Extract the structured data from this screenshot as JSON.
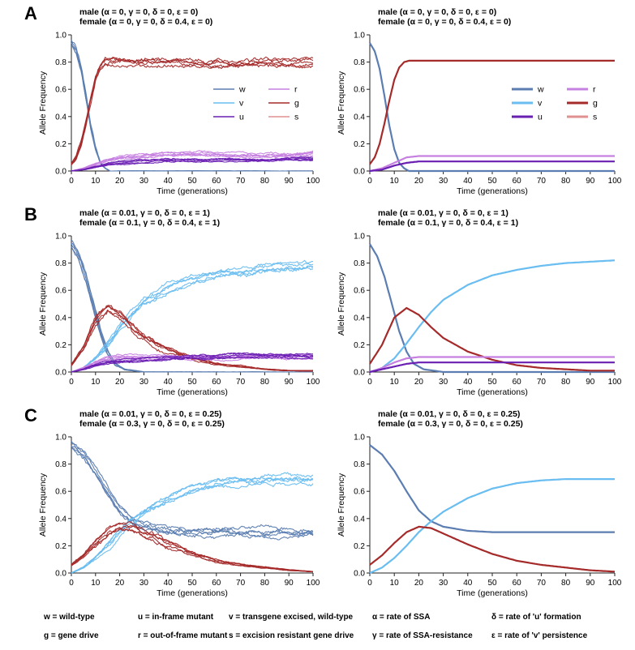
{
  "figure": {
    "colors": {
      "w": "#5b7db1",
      "v": "#69bdf0",
      "u": "#6a1fb3",
      "r": "#c680e0",
      "g": "#a52a2a",
      "s": "#e09090"
    },
    "legend_labels": [
      "w",
      "v",
      "u",
      "r",
      "g",
      "s"
    ],
    "footer": [
      [
        "w = wild-type",
        "u = in-frame mutant",
        "v = transgene excised, wild-type",
        "α = rate of SSA",
        "δ = rate of 'u' formation"
      ],
      [
        "g = gene drive",
        "r = out-of-frame mutant",
        "s = excision resistant gene drive",
        "γ = rate of SSA-resistance",
        "ε = rate of 'v' persistence"
      ]
    ]
  },
  "chart_data": [
    {
      "type": "line",
      "row_label": "A",
      "title": [
        "male (α = 0, γ = 0, δ = 0, ε = 0)",
        "female (α = 0, γ = 0, δ = 0.4, ε = 0)"
      ],
      "xlabel": "Time (generations)",
      "ylabel": "Allele Frequency",
      "xlim": [
        0,
        100
      ],
      "ylim": [
        0,
        1
      ],
      "xticks": [
        "0",
        "10",
        "20",
        "30",
        "40",
        "50",
        "60",
        "70",
        "80",
        "90",
        "100"
      ],
      "yticks": [
        "0.0",
        "0.2",
        "0.4",
        "0.6",
        "0.8",
        "1.0"
      ],
      "legend": "center-right",
      "stochastic": true,
      "series": [
        {
          "key": "w",
          "x": [
            0,
            2,
            4,
            6,
            8,
            10,
            12,
            14,
            16,
            20
          ],
          "y": [
            0.94,
            0.88,
            0.75,
            0.55,
            0.33,
            0.16,
            0.06,
            0.02,
            0.0,
            0.0
          ]
        },
        {
          "key": "g",
          "x": [
            0,
            2,
            4,
            6,
            8,
            10,
            12,
            14,
            16,
            20,
            30,
            40,
            50,
            60,
            70,
            80,
            90,
            100
          ],
          "y": [
            0.05,
            0.1,
            0.2,
            0.35,
            0.52,
            0.67,
            0.76,
            0.8,
            0.81,
            0.81,
            0.8,
            0.8,
            0.79,
            0.79,
            0.79,
            0.79,
            0.79,
            0.8
          ]
        },
        {
          "key": "r",
          "x": [
            0,
            5,
            10,
            15,
            20,
            30,
            40,
            50,
            60,
            70,
            80,
            90,
            100
          ],
          "y": [
            0,
            0.02,
            0.05,
            0.08,
            0.1,
            0.11,
            0.12,
            0.12,
            0.12,
            0.12,
            0.12,
            0.12,
            0.13
          ]
        },
        {
          "key": "u",
          "x": [
            0,
            5,
            10,
            15,
            20,
            30,
            40,
            50,
            60,
            70,
            80,
            90,
            100
          ],
          "y": [
            0,
            0.01,
            0.03,
            0.05,
            0.06,
            0.07,
            0.08,
            0.08,
            0.08,
            0.08,
            0.08,
            0.09,
            0.09
          ]
        }
      ]
    },
    {
      "type": "line",
      "row_label": "",
      "title": [
        "male (α = 0, γ = 0, δ = 0, ε = 0)",
        "female (α = 0, γ = 0, δ = 0.4, ε = 0)"
      ],
      "xlabel": "Time (generations)",
      "ylabel": "Allele Frequency",
      "xlim": [
        0,
        100
      ],
      "ylim": [
        0,
        1
      ],
      "xticks": [
        "0",
        "10",
        "20",
        "30",
        "40",
        "50",
        "60",
        "70",
        "80",
        "90",
        "100"
      ],
      "yticks": [
        "0.0",
        "0.2",
        "0.4",
        "0.6",
        "0.8",
        "1.0"
      ],
      "legend": "center-right",
      "stochastic": false,
      "series": [
        {
          "key": "w",
          "x": [
            0,
            2,
            4,
            6,
            8,
            10,
            12,
            14,
            16,
            20
          ],
          "y": [
            0.94,
            0.88,
            0.75,
            0.55,
            0.33,
            0.16,
            0.06,
            0.02,
            0.0,
            0.0
          ]
        },
        {
          "key": "g",
          "x": [
            0,
            2,
            4,
            6,
            8,
            10,
            12,
            14,
            16,
            18,
            20,
            30,
            40,
            50,
            60,
            70,
            80,
            90,
            100
          ],
          "y": [
            0.05,
            0.1,
            0.2,
            0.35,
            0.52,
            0.67,
            0.76,
            0.8,
            0.81,
            0.81,
            0.81,
            0.81,
            0.81,
            0.81,
            0.81,
            0.81,
            0.81,
            0.81,
            0.81
          ]
        },
        {
          "key": "r",
          "x": [
            0,
            5,
            10,
            15,
            20,
            30,
            40,
            50,
            60,
            70,
            80,
            90,
            100
          ],
          "y": [
            0,
            0.02,
            0.06,
            0.1,
            0.11,
            0.11,
            0.11,
            0.11,
            0.11,
            0.11,
            0.11,
            0.11,
            0.11
          ]
        },
        {
          "key": "u",
          "x": [
            0,
            5,
            10,
            15,
            20,
            30,
            40,
            50,
            60,
            70,
            80,
            90,
            100
          ],
          "y": [
            0,
            0.01,
            0.04,
            0.06,
            0.07,
            0.07,
            0.07,
            0.07,
            0.07,
            0.07,
            0.07,
            0.07,
            0.07
          ]
        }
      ]
    },
    {
      "type": "line",
      "row_label": "B",
      "title": [
        "male (α = 0.01, γ = 0, δ = 0, ε = 1)",
        "female (α = 0.1, γ = 0, δ = 0.4, ε = 1)"
      ],
      "xlabel": "Time (generations)",
      "ylabel": "Allele Frequency",
      "xlim": [
        0,
        100
      ],
      "ylim": [
        0,
        1
      ],
      "xticks": [
        "0",
        "10",
        "20",
        "30",
        "40",
        "50",
        "60",
        "70",
        "80",
        "90",
        "100"
      ],
      "yticks": [
        "0.0",
        "0.2",
        "0.4",
        "0.6",
        "0.8",
        "1.0"
      ],
      "legend": "none",
      "stochastic": true,
      "series": [
        {
          "key": "w",
          "x": [
            0,
            3,
            6,
            9,
            12,
            15,
            18,
            22,
            26,
            30
          ],
          "y": [
            0.94,
            0.85,
            0.7,
            0.5,
            0.3,
            0.15,
            0.06,
            0.02,
            0.01,
            0
          ]
        },
        {
          "key": "v",
          "x": [
            0,
            5,
            10,
            15,
            20,
            25,
            30,
            40,
            50,
            60,
            70,
            80,
            90,
            100
          ],
          "y": [
            0,
            0.03,
            0.1,
            0.2,
            0.32,
            0.43,
            0.52,
            0.62,
            0.68,
            0.72,
            0.74,
            0.76,
            0.77,
            0.78
          ]
        },
        {
          "key": "g",
          "x": [
            0,
            5,
            10,
            15,
            20,
            25,
            30,
            40,
            50,
            60,
            70,
            80,
            90,
            100
          ],
          "y": [
            0.05,
            0.18,
            0.38,
            0.47,
            0.42,
            0.33,
            0.25,
            0.16,
            0.1,
            0.06,
            0.04,
            0.02,
            0.01,
            0.01
          ]
        },
        {
          "key": "r",
          "x": [
            0,
            5,
            10,
            15,
            20,
            30,
            40,
            50,
            60,
            70,
            80,
            90,
            100
          ],
          "y": [
            0,
            0.03,
            0.07,
            0.1,
            0.11,
            0.11,
            0.11,
            0.11,
            0.11,
            0.11,
            0.11,
            0.11,
            0.11
          ]
        },
        {
          "key": "u",
          "x": [
            0,
            5,
            10,
            15,
            20,
            30,
            40,
            50,
            60,
            70,
            80,
            90,
            100
          ],
          "y": [
            0,
            0.02,
            0.05,
            0.07,
            0.08,
            0.09,
            0.1,
            0.11,
            0.11,
            0.12,
            0.12,
            0.12,
            0.12
          ]
        }
      ]
    },
    {
      "type": "line",
      "row_label": "",
      "title": [
        "male (α = 0.01, γ = 0, δ = 0, ε = 1)",
        "female (α = 0.1, γ = 0, δ = 0.4, ε = 1)"
      ],
      "xlabel": "Time (generations)",
      "ylabel": "Allele Frequency",
      "xlim": [
        0,
        100
      ],
      "ylim": [
        0,
        1
      ],
      "xticks": [
        "0",
        "10",
        "20",
        "30",
        "40",
        "50",
        "60",
        "70",
        "80",
        "90",
        "100"
      ],
      "yticks": [
        "0.0",
        "0.2",
        "0.4",
        "0.6",
        "0.8",
        "1.0"
      ],
      "legend": "none",
      "stochastic": false,
      "series": [
        {
          "key": "w",
          "x": [
            0,
            3,
            6,
            9,
            12,
            15,
            18,
            22,
            26,
            30
          ],
          "y": [
            0.94,
            0.85,
            0.7,
            0.5,
            0.3,
            0.15,
            0.06,
            0.02,
            0.01,
            0
          ]
        },
        {
          "key": "v",
          "x": [
            0,
            5,
            10,
            15,
            20,
            25,
            30,
            40,
            50,
            60,
            70,
            80,
            90,
            100
          ],
          "y": [
            0,
            0.03,
            0.1,
            0.21,
            0.33,
            0.44,
            0.53,
            0.64,
            0.71,
            0.75,
            0.78,
            0.8,
            0.81,
            0.82
          ]
        },
        {
          "key": "g",
          "x": [
            0,
            5,
            10,
            15,
            20,
            25,
            30,
            40,
            50,
            60,
            70,
            80,
            90,
            100
          ],
          "y": [
            0.06,
            0.2,
            0.4,
            0.47,
            0.42,
            0.33,
            0.25,
            0.15,
            0.09,
            0.05,
            0.03,
            0.02,
            0.01,
            0.01
          ]
        },
        {
          "key": "r",
          "x": [
            0,
            5,
            10,
            15,
            20,
            30,
            40,
            50,
            60,
            70,
            80,
            90,
            100
          ],
          "y": [
            0,
            0.03,
            0.07,
            0.1,
            0.11,
            0.11,
            0.11,
            0.11,
            0.11,
            0.11,
            0.11,
            0.11,
            0.11
          ]
        },
        {
          "key": "u",
          "x": [
            0,
            5,
            10,
            15,
            20,
            30,
            40,
            50,
            60,
            70,
            80,
            90,
            100
          ],
          "y": [
            0,
            0.02,
            0.04,
            0.06,
            0.07,
            0.07,
            0.07,
            0.07,
            0.07,
            0.07,
            0.07,
            0.07,
            0.07
          ]
        }
      ]
    },
    {
      "type": "line",
      "row_label": "C",
      "title": [
        "male (α = 0.01, γ = 0, δ = 0, ε = 0.25)",
        "female (α = 0.3, γ = 0, δ = 0, ε = 0.25)"
      ],
      "xlabel": "Time (generations)",
      "ylabel": "Allele Frequency",
      "xlim": [
        0,
        100
      ],
      "ylim": [
        0,
        1
      ],
      "xticks": [
        "0",
        "10",
        "20",
        "30",
        "40",
        "50",
        "60",
        "70",
        "80",
        "90",
        "100"
      ],
      "yticks": [
        "0.0",
        "0.2",
        "0.4",
        "0.6",
        "0.8",
        "1.0"
      ],
      "legend": "none",
      "stochastic": true,
      "series": [
        {
          "key": "w",
          "x": [
            0,
            5,
            10,
            15,
            20,
            25,
            30,
            40,
            50,
            60,
            70,
            80,
            90,
            100
          ],
          "y": [
            0.94,
            0.87,
            0.75,
            0.6,
            0.46,
            0.38,
            0.34,
            0.31,
            0.3,
            0.3,
            0.3,
            0.3,
            0.3,
            0.3
          ]
        },
        {
          "key": "v",
          "x": [
            0,
            5,
            10,
            15,
            20,
            25,
            30,
            40,
            50,
            60,
            70,
            80,
            90,
            100
          ],
          "y": [
            0,
            0.04,
            0.11,
            0.2,
            0.3,
            0.38,
            0.45,
            0.55,
            0.62,
            0.66,
            0.68,
            0.69,
            0.69,
            0.69
          ]
        },
        {
          "key": "g",
          "x": [
            0,
            5,
            10,
            15,
            20,
            25,
            30,
            40,
            50,
            60,
            70,
            80,
            90,
            100
          ],
          "y": [
            0.06,
            0.13,
            0.22,
            0.3,
            0.34,
            0.33,
            0.29,
            0.21,
            0.14,
            0.09,
            0.06,
            0.04,
            0.02,
            0.01
          ]
        }
      ]
    },
    {
      "type": "line",
      "row_label": "",
      "title": [
        "male (α = 0.01, γ = 0, δ = 0, ε = 0.25)",
        "female (α = 0.3, γ = 0, δ = 0, ε = 0.25)"
      ],
      "xlabel": "Time (generations)",
      "ylabel": "Allele Frequency",
      "xlim": [
        0,
        100
      ],
      "ylim": [
        0,
        1
      ],
      "xticks": [
        "0",
        "10",
        "20",
        "30",
        "40",
        "50",
        "60",
        "70",
        "80",
        "90",
        "100"
      ],
      "yticks": [
        "0.0",
        "0.2",
        "0.4",
        "0.6",
        "0.8",
        "1.0"
      ],
      "legend": "none",
      "stochastic": false,
      "series": [
        {
          "key": "w",
          "x": [
            0,
            5,
            10,
            15,
            20,
            25,
            30,
            40,
            50,
            60,
            70,
            80,
            90,
            100
          ],
          "y": [
            0.94,
            0.87,
            0.75,
            0.6,
            0.46,
            0.38,
            0.34,
            0.31,
            0.3,
            0.3,
            0.3,
            0.3,
            0.3,
            0.3
          ]
        },
        {
          "key": "v",
          "x": [
            0,
            5,
            10,
            15,
            20,
            25,
            30,
            40,
            50,
            60,
            70,
            80,
            90,
            100
          ],
          "y": [
            0,
            0.04,
            0.11,
            0.2,
            0.3,
            0.38,
            0.45,
            0.55,
            0.62,
            0.66,
            0.68,
            0.69,
            0.69,
            0.69
          ]
        },
        {
          "key": "g",
          "x": [
            0,
            5,
            10,
            15,
            20,
            25,
            30,
            40,
            50,
            60,
            70,
            80,
            90,
            100
          ],
          "y": [
            0.06,
            0.13,
            0.22,
            0.3,
            0.34,
            0.33,
            0.29,
            0.21,
            0.14,
            0.09,
            0.06,
            0.04,
            0.02,
            0.01
          ]
        }
      ]
    }
  ]
}
